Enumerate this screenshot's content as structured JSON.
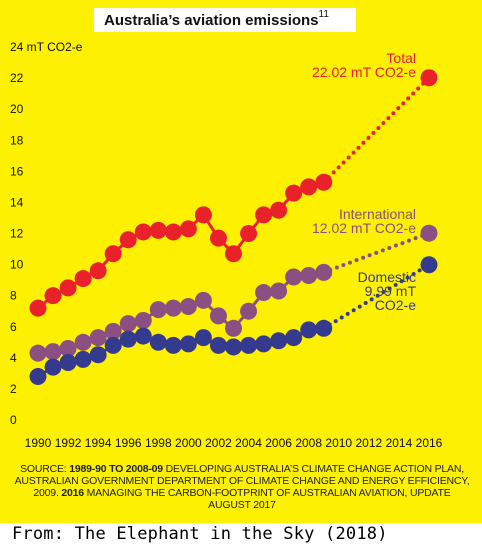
{
  "title": "Australia’s aviation emissions",
  "title_superscript": "11",
  "source_parts": [
    {
      "text": "SOURCE: ",
      "bold": false
    },
    {
      "text": "1989-90 TO 2008-09",
      "bold": true
    },
    {
      "text": " DEVELOPING AUSTRALIA’S CLIMATE CHANGE ACTION PLAN, AUSTRALIAN GOVERNMENT DEPARTMENT OF CLIMATE CHANGE AND ENERGY EFFICIENCY, 2009. ",
      "bold": false
    },
    {
      "text": "2016",
      "bold": true
    },
    {
      "text": " MANAGING THE CARBON-FOOTPRINT OF AUSTRALIAN AVIATION, UPDATE AUGUST 2017",
      "bold": false
    }
  ],
  "credit": "From: The Elephant in the Sky (2018)",
  "colors": {
    "background": "#fdf000",
    "total": "#e8212b",
    "international": "#8b4f82",
    "domestic": "#343b8e"
  },
  "chart_data": {
    "type": "line",
    "ylim": [
      0,
      24
    ],
    "xlim": [
      1990,
      2016
    ],
    "yticks": [
      0,
      2,
      4,
      6,
      8,
      10,
      12,
      14,
      16,
      18,
      20,
      22,
      24
    ],
    "ytick_labels": [
      "0",
      "2",
      "4",
      "6",
      "8",
      "10",
      "12",
      "14",
      "16",
      "18",
      "20",
      "22",
      "24 mT CO2-e"
    ],
    "xticks": [
      1990,
      1992,
      1994,
      1996,
      1998,
      2000,
      2002,
      2004,
      2006,
      2008,
      2010,
      2012,
      2014,
      2016
    ],
    "grid": false,
    "x": [
      1990,
      1991,
      1992,
      1993,
      1994,
      1995,
      1996,
      1997,
      1998,
      1999,
      2000,
      2001,
      2002,
      2003,
      2004,
      2005,
      2006,
      2007,
      2008,
      2009,
      2016
    ],
    "series": [
      {
        "key": "total",
        "label": [
          "Total",
          "22.02 mT CO2-e"
        ],
        "values": [
          7.2,
          8.0,
          8.5,
          9.1,
          9.6,
          10.7,
          11.6,
          12.1,
          12.2,
          12.1,
          12.3,
          13.2,
          11.7,
          10.7,
          12.0,
          13.2,
          13.5,
          14.6,
          15.0,
          15.3,
          22.02
        ]
      },
      {
        "key": "international",
        "label": [
          "International",
          "12.02 mT CO2-e"
        ],
        "values": [
          4.3,
          4.4,
          4.6,
          5.0,
          5.3,
          5.7,
          6.2,
          6.4,
          7.1,
          7.2,
          7.3,
          7.7,
          6.7,
          5.9,
          7.0,
          8.2,
          8.3,
          9.2,
          9.3,
          9.5,
          12.02
        ]
      },
      {
        "key": "domestic",
        "label": [
          "Domestic",
          "9.99 mT",
          "CO2-e"
        ],
        "values": [
          2.8,
          3.4,
          3.7,
          3.9,
          4.2,
          4.8,
          5.2,
          5.4,
          5.0,
          4.8,
          4.9,
          5.3,
          4.8,
          4.7,
          4.8,
          4.9,
          5.1,
          5.3,
          5.8,
          5.9,
          9.99
        ]
      }
    ]
  }
}
